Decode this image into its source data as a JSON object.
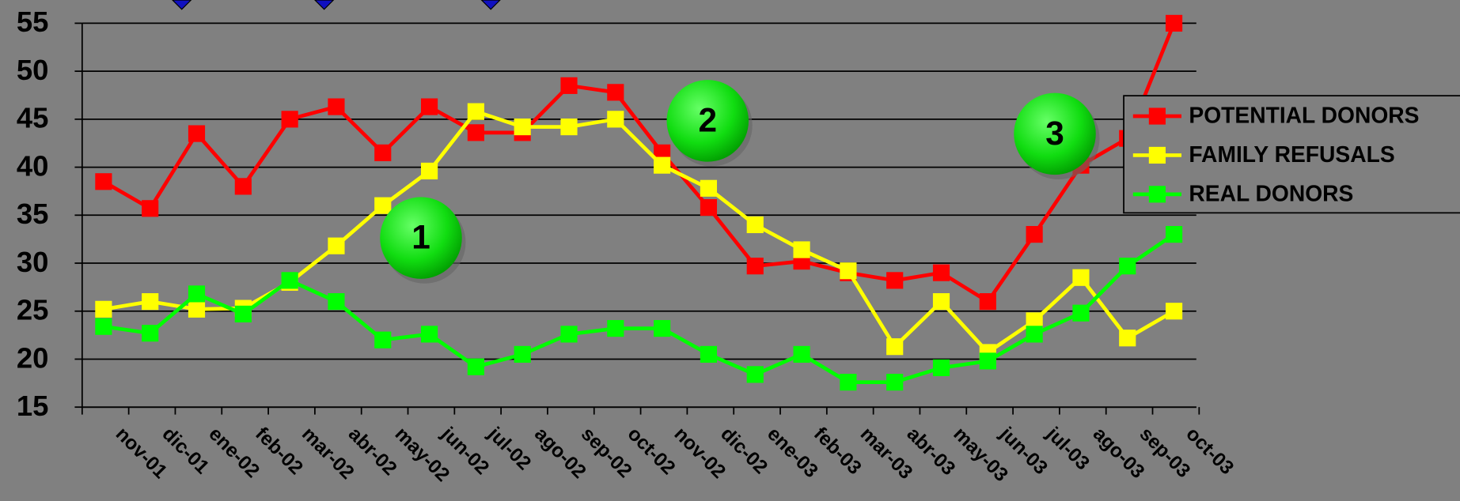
{
  "chart_data": {
    "type": "line",
    "categories": [
      "nov-01",
      "dic-01",
      "ene-02",
      "feb-02",
      "mar-02",
      "abr-02",
      "may-02",
      "jun-02",
      "jul-02",
      "ago-02",
      "sep-02",
      "oct-02",
      "nov-02",
      "dic-02",
      "ene-03",
      "feb-03",
      "mar-03",
      "abr-03",
      "may-03",
      "jun-03",
      "jul-03",
      "ago-03",
      "sep-03",
      "oct-03"
    ],
    "series": [
      {
        "name": "POTENTIAL DONORS",
        "color": "#ff0000",
        "values": [
          38.5,
          35.7,
          43.5,
          38,
          45,
          46.3,
          41.5,
          46.3,
          43.6,
          43.6,
          48.5,
          47.8,
          41.5,
          35.8,
          29.7,
          30.2,
          29,
          28.2,
          29,
          26,
          33,
          40.2,
          43,
          55
        ]
      },
      {
        "name": "FAMILY REFUSALS",
        "color": "#ffff00",
        "values": [
          25.2,
          26,
          25.2,
          25.3,
          28,
          31.8,
          36,
          39.6,
          45.8,
          44.2,
          44.2,
          45,
          40.2,
          37.8,
          34,
          31.4,
          29.2,
          21.3,
          26,
          20.7,
          24,
          28.5,
          22.2,
          25
        ]
      },
      {
        "name": "REAL DONORS",
        "color": "#00ff00",
        "values": [
          23.4,
          22.7,
          26.8,
          24.7,
          28.2,
          26,
          22,
          22.6,
          19.2,
          20.5,
          22.6,
          23.2,
          23.2,
          20.5,
          18.4,
          20.5,
          17.6,
          17.6,
          19.1,
          19.8,
          22.6,
          24.8,
          29.7,
          33
        ]
      }
    ],
    "annotations": [
      "1",
      "2",
      "3"
    ],
    "ylim": [
      15,
      55
    ],
    "yticks": [
      15,
      20,
      25,
      30,
      35,
      40,
      45,
      50,
      55
    ],
    "grid": true,
    "legend": "right"
  }
}
